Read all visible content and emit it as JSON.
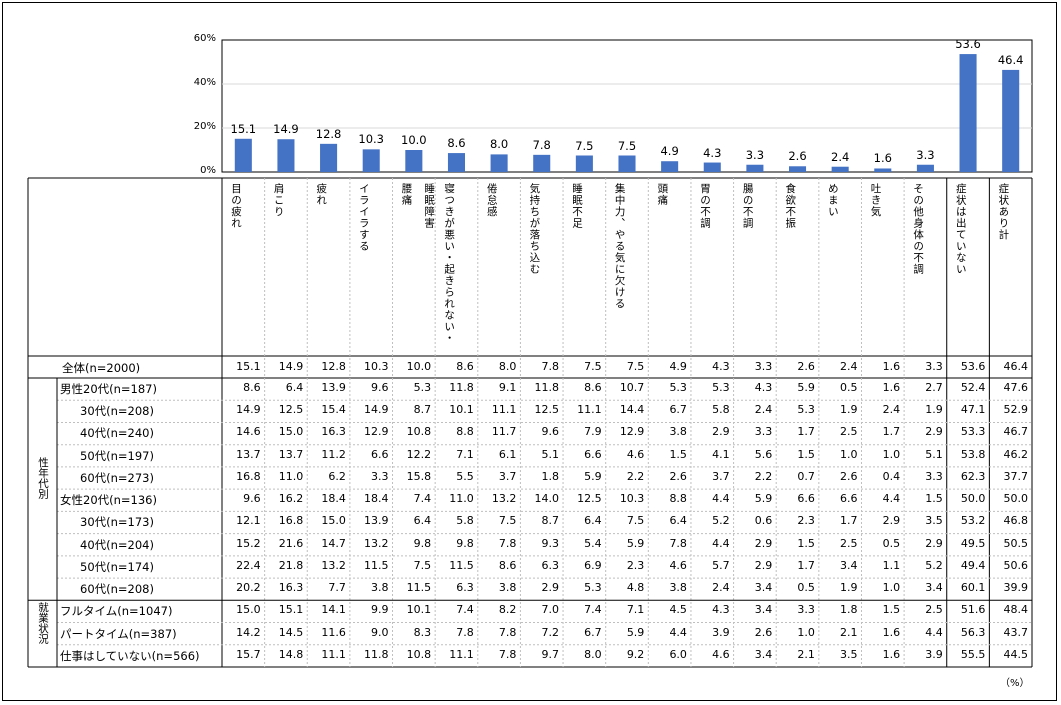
{
  "unit_label": "（%）",
  "categories": [
    "目の疲れ",
    "肩こり",
    "疲れ",
    "イライラする",
    "腰痛",
    "寝つきが悪い・起きられない・睡眠障害",
    "倦怠感",
    "気持ちが落ち込む",
    "睡眠不足",
    "集中力、やる気に欠ける",
    "頭痛",
    "胃の不調",
    "腸の不調",
    "食欲不振",
    "めまい",
    "吐き気",
    "その他身体の不調",
    "症状は出ていない",
    "症状あり計"
  ],
  "chart_data": {
    "type": "bar",
    "categories": [
      "目の疲れ",
      "肩こり",
      "疲れ",
      "イライラする",
      "腰痛",
      "寝つきが悪い・起きられない・睡眠障害",
      "倦怠感",
      "気持ちが落ち込む",
      "睡眠不足",
      "集中力、やる気に欠ける",
      "頭痛",
      "胃の不調",
      "腸の不調",
      "食欲不振",
      "めまい",
      "吐き気",
      "その他身体の不調",
      "症状は出ていない",
      "症状あり計"
    ],
    "values": [
      15.1,
      14.9,
      12.8,
      10.3,
      10.0,
      8.6,
      8.0,
      7.8,
      7.5,
      7.5,
      4.9,
      4.3,
      3.3,
      2.6,
      2.4,
      1.6,
      3.3,
      53.6,
      46.4
    ],
    "value_labels": [
      "15.1",
      "14.9",
      "12.8",
      "10.3",
      "10.0",
      "8.6",
      "8.0",
      "7.8",
      "7.5",
      "7.5",
      "4.9",
      "4.3",
      "3.3",
      "2.6",
      "2.4",
      "1.6",
      "3.3",
      "53.6",
      "46.4"
    ],
    "yticks": [
      "0%",
      "20%",
      "40%",
      "60%"
    ],
    "ylim": [
      0,
      60
    ],
    "color": "#4472C4"
  },
  "table": {
    "groups": [
      {
        "label": "性年代別",
        "first_row": 1,
        "last_row": 10
      },
      {
        "label": "就業状況",
        "first_row": 11,
        "last_row": 13
      }
    ],
    "rows": [
      {
        "label": "全体(n=2000)",
        "values": [
          "15.1",
          "14.9",
          "12.8",
          "10.3",
          "10.0",
          "8.6",
          "8.0",
          "7.8",
          "7.5",
          "7.5",
          "4.9",
          "4.3",
          "3.3",
          "2.6",
          "2.4",
          "1.6",
          "3.3",
          "53.6",
          "46.4"
        ]
      },
      {
        "label": "男性20代(n=187)",
        "values": [
          "8.6",
          "6.4",
          "13.9",
          "9.6",
          "5.3",
          "11.8",
          "9.1",
          "11.8",
          "8.6",
          "10.7",
          "5.3",
          "5.3",
          "4.3",
          "5.9",
          "0.5",
          "1.6",
          "2.7",
          "52.4",
          "47.6"
        ]
      },
      {
        "label": "30代(n=208)",
        "values": [
          "14.9",
          "12.5",
          "15.4",
          "14.9",
          "8.7",
          "10.1",
          "11.1",
          "12.5",
          "11.1",
          "14.4",
          "6.7",
          "5.8",
          "2.4",
          "5.3",
          "1.9",
          "2.4",
          "1.9",
          "47.1",
          "52.9"
        ]
      },
      {
        "label": "40代(n=240)",
        "values": [
          "14.6",
          "15.0",
          "16.3",
          "12.9",
          "10.8",
          "8.8",
          "11.7",
          "9.6",
          "7.9",
          "12.9",
          "3.8",
          "2.9",
          "3.3",
          "1.7",
          "2.5",
          "1.7",
          "2.9",
          "53.3",
          "46.7"
        ]
      },
      {
        "label": "50代(n=197)",
        "values": [
          "13.7",
          "13.7",
          "11.2",
          "6.6",
          "12.2",
          "7.1",
          "6.1",
          "5.1",
          "6.6",
          "4.6",
          "1.5",
          "4.1",
          "5.6",
          "1.5",
          "1.0",
          "1.0",
          "5.1",
          "53.8",
          "46.2"
        ]
      },
      {
        "label": "60代(n=273)",
        "values": [
          "16.8",
          "11.0",
          "6.2",
          "3.3",
          "15.8",
          "5.5",
          "3.7",
          "1.8",
          "5.9",
          "2.2",
          "2.6",
          "3.7",
          "2.2",
          "0.7",
          "2.6",
          "0.4",
          "3.3",
          "62.3",
          "37.7"
        ]
      },
      {
        "label": "女性20代(n=136)",
        "values": [
          "9.6",
          "16.2",
          "18.4",
          "18.4",
          "7.4",
          "11.0",
          "13.2",
          "14.0",
          "12.5",
          "10.3",
          "8.8",
          "4.4",
          "5.9",
          "6.6",
          "6.6",
          "4.4",
          "1.5",
          "50.0",
          "50.0"
        ]
      },
      {
        "label": "30代(n=173)",
        "values": [
          "12.1",
          "16.8",
          "15.0",
          "13.9",
          "6.4",
          "5.8",
          "7.5",
          "8.7",
          "6.4",
          "7.5",
          "6.4",
          "5.2",
          "0.6",
          "2.3",
          "1.7",
          "2.9",
          "3.5",
          "53.2",
          "46.8"
        ]
      },
      {
        "label": "40代(n=204)",
        "values": [
          "15.2",
          "21.6",
          "14.7",
          "13.2",
          "9.8",
          "9.8",
          "7.8",
          "9.3",
          "5.4",
          "5.9",
          "7.8",
          "4.4",
          "2.9",
          "1.5",
          "2.5",
          "0.5",
          "2.9",
          "49.5",
          "50.5"
        ]
      },
      {
        "label": "50代(n=174)",
        "values": [
          "22.4",
          "21.8",
          "13.2",
          "11.5",
          "7.5",
          "11.5",
          "8.6",
          "6.3",
          "6.9",
          "2.3",
          "4.6",
          "5.7",
          "2.9",
          "1.7",
          "3.4",
          "1.1",
          "5.2",
          "49.4",
          "50.6"
        ]
      },
      {
        "label": "60代(n=208)",
        "values": [
          "20.2",
          "16.3",
          "7.7",
          "3.8",
          "11.5",
          "6.3",
          "3.8",
          "2.9",
          "5.3",
          "4.8",
          "3.8",
          "2.4",
          "3.4",
          "0.5",
          "1.9",
          "1.0",
          "3.4",
          "60.1",
          "39.9"
        ]
      },
      {
        "label": "フルタイム(n=1047)",
        "values": [
          "15.0",
          "15.1",
          "14.1",
          "9.9",
          "10.1",
          "7.4",
          "8.2",
          "7.0",
          "7.4",
          "7.1",
          "4.5",
          "4.3",
          "3.4",
          "3.3",
          "1.8",
          "1.5",
          "2.5",
          "51.6",
          "48.4"
        ]
      },
      {
        "label": "パートタイム(n=387)",
        "values": [
          "14.2",
          "14.5",
          "11.6",
          "9.0",
          "8.3",
          "7.8",
          "7.8",
          "7.2",
          "6.7",
          "5.9",
          "4.4",
          "3.9",
          "2.6",
          "1.0",
          "2.1",
          "1.6",
          "4.4",
          "56.3",
          "43.7"
        ]
      },
      {
        "label": "仕事はしていない(n=566)",
        "values": [
          "15.7",
          "14.8",
          "11.1",
          "11.8",
          "10.8",
          "11.1",
          "7.8",
          "9.7",
          "8.0",
          "9.2",
          "6.0",
          "4.6",
          "3.4",
          "2.1",
          "3.5",
          "1.6",
          "3.9",
          "55.5",
          "44.5"
        ]
      }
    ]
  }
}
